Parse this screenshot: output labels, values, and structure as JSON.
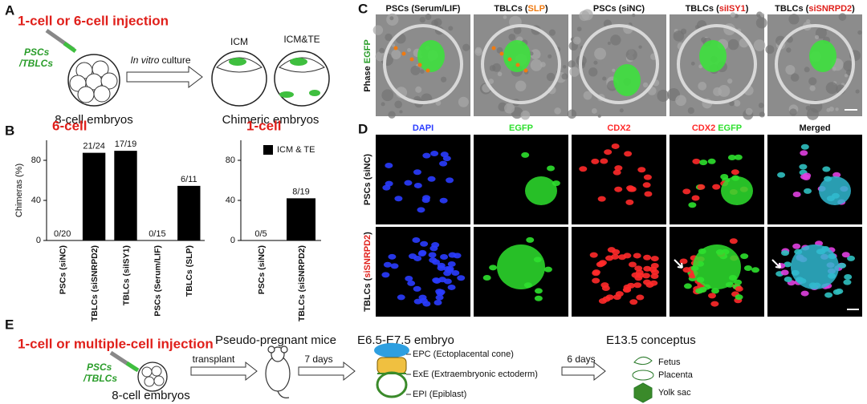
{
  "panel_letters": [
    "A",
    "B",
    "C",
    "D",
    "E"
  ],
  "panel_a": {
    "title": "1-cell or 6-cell injection",
    "cell_label": [
      "PSCs",
      "/TBLCs"
    ],
    "culture": [
      "In vitro",
      "culture"
    ],
    "embryo_label": "8-cell embryos",
    "stages": [
      "ICM",
      "ICM&TE"
    ],
    "result_label": "Chimeric embryos"
  },
  "chart_data": [
    {
      "type": "bar",
      "title": "6-cell",
      "ylabel": "Chimeras (%)",
      "categories": [
        "PSCs (siNC)",
        "TBLCs (siSNRPD2)",
        "TBLCs (siISY1)",
        "PSCs (Serum/LIF)",
        "TBLCs (SLP)"
      ],
      "series": [
        {
          "color": "#000000",
          "values": [
            0,
            87.5,
            89.5,
            0,
            54.5
          ],
          "value_labels": [
            "0/20",
            "21/24",
            "17/19",
            "0/15",
            "6/11"
          ]
        }
      ],
      "ylim": [
        0,
        100
      ],
      "yticks": [
        0,
        40,
        80
      ]
    },
    {
      "type": "bar",
      "title": "1-cell",
      "categories": [
        "PSCs (siNC)",
        "TBLCs (siSNRPD2)"
      ],
      "series": [
        {
          "name": "ICM & TE",
          "color": "#000000",
          "values": [
            0,
            42.1
          ],
          "value_labels": [
            "0/5",
            "8/19"
          ]
        }
      ],
      "ylim": [
        0,
        100
      ],
      "yticks": [
        0,
        40,
        80
      ],
      "legend": "upper right"
    }
  ],
  "panel_c": {
    "channel_label": [
      "Phase",
      "EGFP"
    ],
    "columns": [
      [
        "PSCs (Serum/LIF)"
      ],
      [
        "TBLCs (",
        "SLP",
        ")"
      ],
      [
        "PSCs (siNC)"
      ],
      [
        "TBLCs (",
        "siISY1",
        ")"
      ],
      [
        "TBLCs (",
        "siSNRPD2",
        ")"
      ]
    ]
  },
  "panel_d": {
    "columns": [
      [
        "DAPI"
      ],
      [
        "EGFP"
      ],
      [
        "CDX2"
      ],
      [
        "CDX2",
        "EGFP"
      ],
      [
        "Merged"
      ]
    ],
    "rows": [
      [
        "PSCs (siNC)"
      ],
      [
        "TBLCs (",
        "siSNRPD2",
        ")"
      ]
    ]
  },
  "panel_e": {
    "title": "1-cell or multiple-cell injection",
    "cell_label": [
      "PSCs",
      "/TBLCs"
    ],
    "embryo_label": "8-cell embryos",
    "steps": [
      "transplant",
      "7 days",
      "6 days"
    ],
    "mice_label": "Pseudo-pregnant mice",
    "embryo_stage": "E6.5-E7.5 embryo",
    "parts": [
      "EPC (Ectoplacental cone)",
      "ExE (Extraembryonic ectoderm)",
      "EPI (Epiblast)"
    ],
    "conceptus_label": "E13.5 conceptus",
    "conceptus_parts": [
      "Fetus",
      "Placenta",
      "Yolk sac"
    ]
  }
}
